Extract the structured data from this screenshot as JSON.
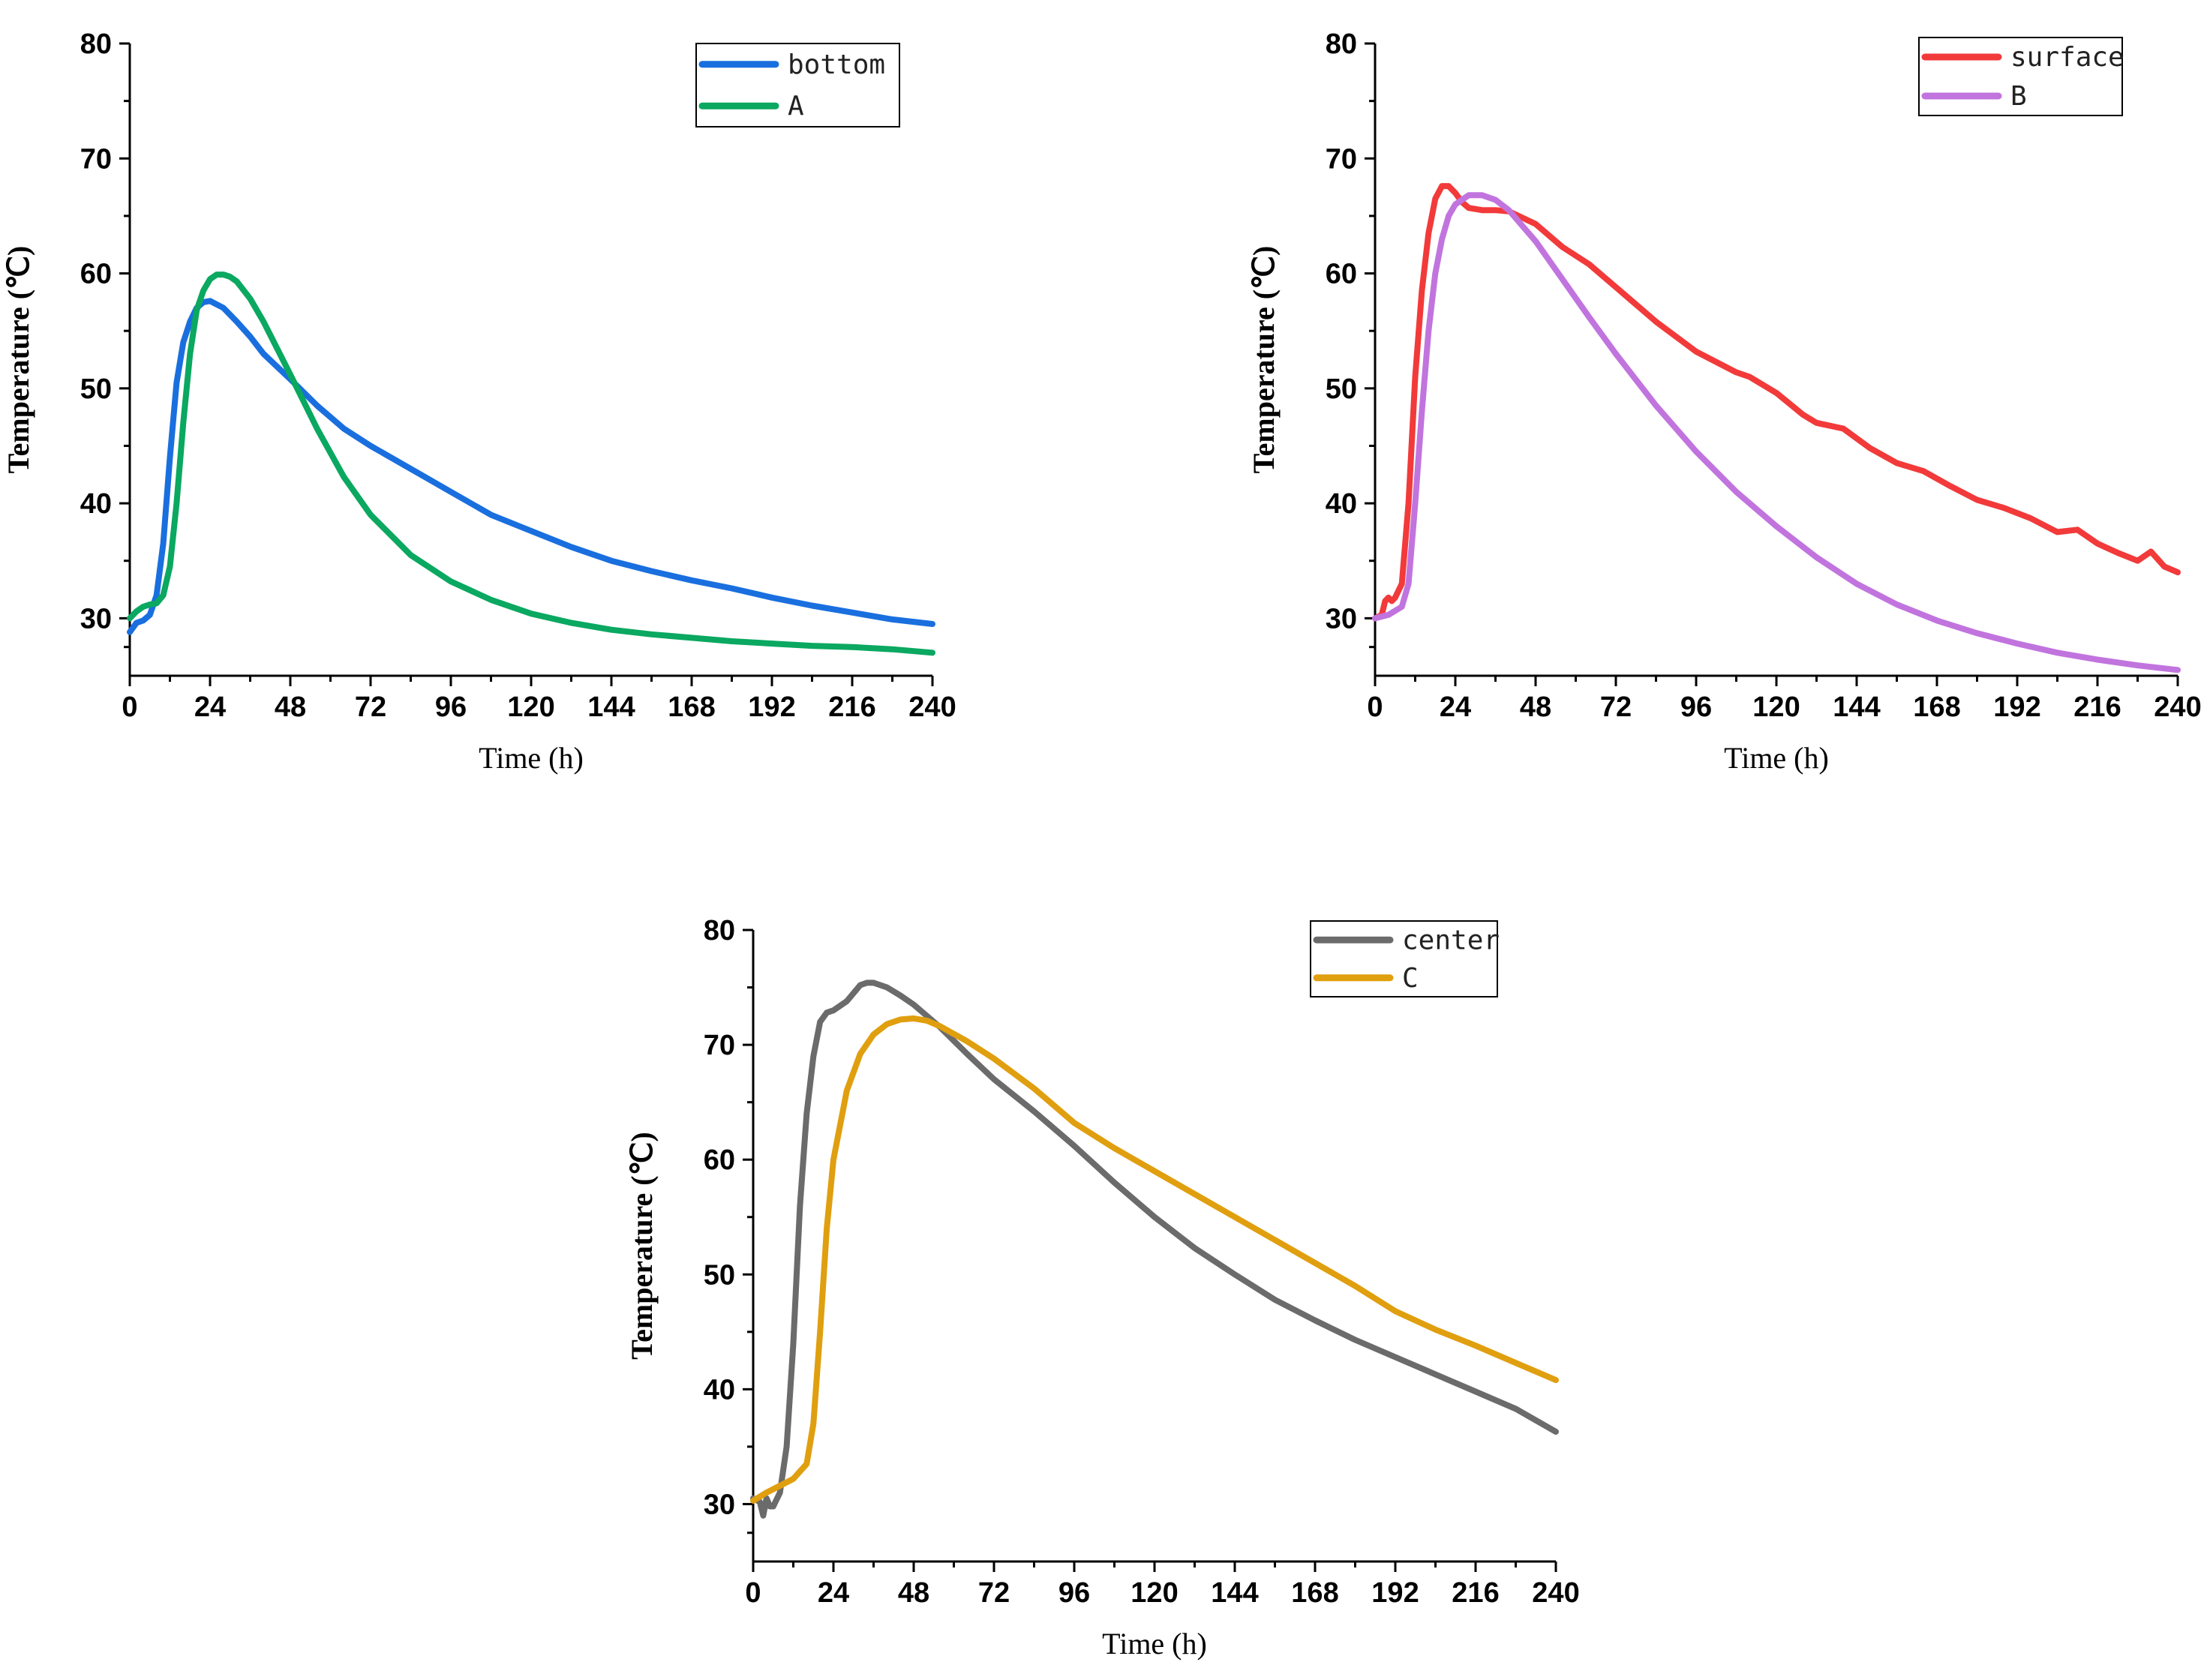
{
  "chart_data": [
    {
      "type": "line",
      "xlabel": "Time (h)",
      "ylabel": "Temperature (℃)",
      "xlim": [
        0,
        240
      ],
      "ylim": [
        25,
        80
      ],
      "xticks": [
        0,
        24,
        48,
        72,
        96,
        120,
        144,
        168,
        192,
        216,
        240
      ],
      "yticks": [
        30,
        40,
        50,
        60,
        70,
        80
      ],
      "grid": false,
      "legend_position": "top-right",
      "series": [
        {
          "name": "bottom",
          "color": "#1a6fdf",
          "x": [
            0,
            2,
            4,
            6,
            8,
            10,
            12,
            14,
            16,
            18,
            20,
            22,
            24,
            28,
            32,
            36,
            40,
            48,
            56,
            64,
            72,
            84,
            96,
            108,
            120,
            132,
            144,
            156,
            168,
            180,
            192,
            204,
            216,
            228,
            240
          ],
          "y": [
            28.8,
            29.6,
            29.8,
            30.3,
            32,
            36.5,
            44,
            50.5,
            54,
            55.8,
            57,
            57.5,
            57.6,
            57,
            55.8,
            54.5,
            53,
            50.8,
            48.5,
            46.5,
            45,
            43,
            41,
            39,
            37.6,
            36.2,
            35,
            34.1,
            33.3,
            32.6,
            31.8,
            31.1,
            30.5,
            29.9,
            29.5
          ]
        },
        {
          "name": "A",
          "color": "#0aa860",
          "x": [
            0,
            2,
            4,
            6,
            8,
            10,
            12,
            14,
            16,
            18,
            20,
            22,
            24,
            26,
            28,
            30,
            32,
            36,
            40,
            48,
            56,
            64,
            72,
            84,
            96,
            108,
            120,
            132,
            144,
            156,
            168,
            180,
            192,
            204,
            216,
            228,
            240
          ],
          "y": [
            30,
            30.6,
            31,
            31.2,
            31.3,
            32,
            34.5,
            40,
            47,
            53,
            56.8,
            58.5,
            59.5,
            59.9,
            59.9,
            59.7,
            59.3,
            57.8,
            55.8,
            51.2,
            46.5,
            42.3,
            39,
            35.5,
            33.2,
            31.6,
            30.4,
            29.6,
            29,
            28.6,
            28.3,
            28,
            27.8,
            27.6,
            27.5,
            27.3,
            27
          ]
        }
      ]
    },
    {
      "type": "line",
      "xlabel": "Time (h)",
      "ylabel": "Temperature (℃)",
      "xlim": [
        0,
        240
      ],
      "ylim": [
        25,
        80
      ],
      "xticks": [
        0,
        24,
        48,
        72,
        96,
        120,
        144,
        168,
        192,
        216,
        240
      ],
      "yticks": [
        30,
        40,
        50,
        60,
        70,
        80
      ],
      "grid": false,
      "legend_position": "top-right",
      "series": [
        {
          "name": "surface",
          "color": "#f23a3a",
          "x": [
            0,
            2,
            3,
            4,
            5,
            6,
            8,
            10,
            12,
            14,
            16,
            18,
            20,
            22,
            24,
            26,
            28,
            32,
            36,
            40,
            48,
            56,
            64,
            72,
            84,
            96,
            108,
            112,
            120,
            128,
            132,
            140,
            148,
            156,
            164,
            172,
            180,
            188,
            196,
            204,
            210,
            216,
            222,
            228,
            232,
            236,
            240
          ],
          "y": [
            30,
            30.3,
            31.5,
            31.8,
            31.5,
            31.8,
            33,
            40,
            51,
            58.5,
            63.5,
            66.5,
            67.6,
            67.6,
            67,
            66.2,
            65.7,
            65.5,
            65.5,
            65.4,
            64.3,
            62.3,
            60.8,
            58.8,
            55.8,
            53.2,
            51.4,
            51,
            49.6,
            47.7,
            47,
            46.5,
            44.8,
            43.5,
            42.8,
            41.5,
            40.3,
            39.6,
            38.7,
            37.5,
            37.7,
            36.5,
            35.7,
            35,
            35.8,
            34.5,
            34
          ]
        },
        {
          "name": "B",
          "color": "#c174de",
          "x": [
            0,
            4,
            8,
            10,
            12,
            14,
            16,
            18,
            20,
            22,
            24,
            28,
            32,
            36,
            40,
            48,
            56,
            64,
            72,
            84,
            96,
            108,
            120,
            132,
            144,
            156,
            168,
            180,
            192,
            204,
            216,
            228,
            240
          ],
          "y": [
            30,
            30.3,
            31,
            33,
            40,
            48,
            55,
            60,
            63,
            65,
            66,
            66.8,
            66.8,
            66.4,
            65.5,
            62.8,
            59.5,
            56.2,
            53,
            48.5,
            44.5,
            41,
            38,
            35.3,
            33,
            31.2,
            29.8,
            28.7,
            27.8,
            27,
            26.4,
            25.9,
            25.5
          ]
        }
      ]
    },
    {
      "type": "line",
      "xlabel": "Time (h)",
      "ylabel": "Temperature (℃)",
      "xlim": [
        0,
        240
      ],
      "ylim": [
        25,
        80
      ],
      "xticks": [
        0,
        24,
        48,
        72,
        96,
        120,
        144,
        168,
        192,
        216,
        240
      ],
      "yticks": [
        30,
        40,
        50,
        60,
        70,
        80
      ],
      "grid": false,
      "legend_position": "top-right",
      "series": [
        {
          "name": "center",
          "color": "#6b6b6b",
          "x": [
            0,
            2,
            3,
            4,
            5,
            6,
            8,
            10,
            12,
            14,
            16,
            18,
            20,
            22,
            24,
            28,
            30,
            32,
            34,
            36,
            40,
            44,
            48,
            56,
            64,
            72,
            84,
            96,
            108,
            120,
            132,
            144,
            156,
            168,
            180,
            192,
            204,
            216,
            228,
            240
          ],
          "y": [
            30.5,
            30.2,
            29,
            30.5,
            29.8,
            29.8,
            31,
            35,
            44,
            56,
            64,
            69,
            72,
            72.8,
            73,
            73.8,
            74.5,
            75.2,
            75.4,
            75.4,
            75,
            74.3,
            73.5,
            71.5,
            69.2,
            67,
            64.2,
            61.2,
            58,
            55,
            52.3,
            50,
            47.8,
            46,
            44.3,
            42.8,
            41.3,
            39.8,
            38.3,
            36.3
          ]
        },
        {
          "name": "C",
          "color": "#e09f0f",
          "x": [
            0,
            4,
            8,
            12,
            16,
            18,
            20,
            22,
            24,
            28,
            32,
            36,
            40,
            44,
            48,
            52,
            56,
            64,
            72,
            84,
            96,
            108,
            120,
            132,
            144,
            156,
            168,
            180,
            192,
            204,
            216,
            228,
            240
          ],
          "y": [
            30.3,
            31,
            31.6,
            32.2,
            33.5,
            37,
            45,
            54,
            60,
            66,
            69.2,
            70.9,
            71.8,
            72.2,
            72.3,
            72.1,
            71.6,
            70.3,
            68.8,
            66.2,
            63.2,
            61,
            59,
            57,
            55,
            53,
            51,
            49,
            46.8,
            45.2,
            43.8,
            42.3,
            40.8
          ]
        }
      ]
    }
  ]
}
